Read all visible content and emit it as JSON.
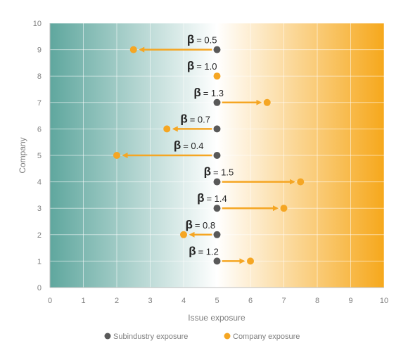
{
  "chart_data": {
    "type": "scatter",
    "xlabel": "Issue exposure",
    "ylabel": "Company",
    "xlim": [
      0,
      10
    ],
    "ylim": [
      0,
      10
    ],
    "x_ticks": [
      "0",
      "1",
      "2",
      "3",
      "4",
      "5",
      "6",
      "7",
      "8",
      "9",
      "10"
    ],
    "y_ticks": [
      "0",
      "1",
      "2",
      "3",
      "4",
      "5",
      "6",
      "7",
      "8",
      "9",
      "10"
    ],
    "grid": true,
    "legend_position": "bottom",
    "colors": {
      "subindustry": "#595959",
      "company": "#f5a623",
      "background_left": "#5fa79e",
      "background_right": "#f6a81c"
    },
    "series": [
      {
        "name": "Subindustry exposure",
        "points": [
          {
            "x": 5,
            "y": 9
          },
          {
            "x": 5,
            "y": 7
          },
          {
            "x": 5,
            "y": 6
          },
          {
            "x": 5,
            "y": 5
          },
          {
            "x": 5,
            "y": 4
          },
          {
            "x": 5,
            "y": 3
          },
          {
            "x": 5,
            "y": 2
          },
          {
            "x": 5,
            "y": 1
          }
        ]
      },
      {
        "name": "Company exposure",
        "points": [
          {
            "x": 2.5,
            "y": 9
          },
          {
            "x": 5,
            "y": 8
          },
          {
            "x": 6.5,
            "y": 7
          },
          {
            "x": 3.5,
            "y": 6
          },
          {
            "x": 2,
            "y": 5
          },
          {
            "x": 7.5,
            "y": 4
          },
          {
            "x": 7,
            "y": 3
          },
          {
            "x": 4,
            "y": 2
          },
          {
            "x": 6,
            "y": 1
          }
        ]
      }
    ],
    "annotations": [
      {
        "y": 9,
        "beta_symbol": "β",
        "text": "= 0.5",
        "label_x": 5.0,
        "arrow_from": 4.85,
        "arrow_to": 2.7
      },
      {
        "y": 8,
        "beta_symbol": "β",
        "text": "= 1.0",
        "label_x": 5.0,
        "arrow_from": null,
        "arrow_to": null
      },
      {
        "y": 7,
        "beta_symbol": "β",
        "text": "= 1.3",
        "label_x": 5.2,
        "arrow_from": 5.15,
        "arrow_to": 6.3
      },
      {
        "y": 6,
        "beta_symbol": "β",
        "text": "= 0.7",
        "label_x": 4.8,
        "arrow_from": 4.85,
        "arrow_to": 3.7
      },
      {
        "y": 5,
        "beta_symbol": "β",
        "text": "= 0.4",
        "label_x": 4.6,
        "arrow_from": 4.85,
        "arrow_to": 2.2
      },
      {
        "y": 4,
        "beta_symbol": "β",
        "text": "= 1.5",
        "label_x": 5.5,
        "arrow_from": 5.15,
        "arrow_to": 7.3
      },
      {
        "y": 3,
        "beta_symbol": "β",
        "text": "= 1.4",
        "label_x": 5.3,
        "arrow_from": 5.15,
        "arrow_to": 6.8
      },
      {
        "y": 2,
        "beta_symbol": "β",
        "text": "= 0.8",
        "label_x": 4.95,
        "arrow_from": 4.85,
        "arrow_to": 4.2
      },
      {
        "y": 1,
        "beta_symbol": "β",
        "text": "= 1.2",
        "label_x": 5.05,
        "arrow_from": 5.15,
        "arrow_to": 5.8
      }
    ]
  }
}
